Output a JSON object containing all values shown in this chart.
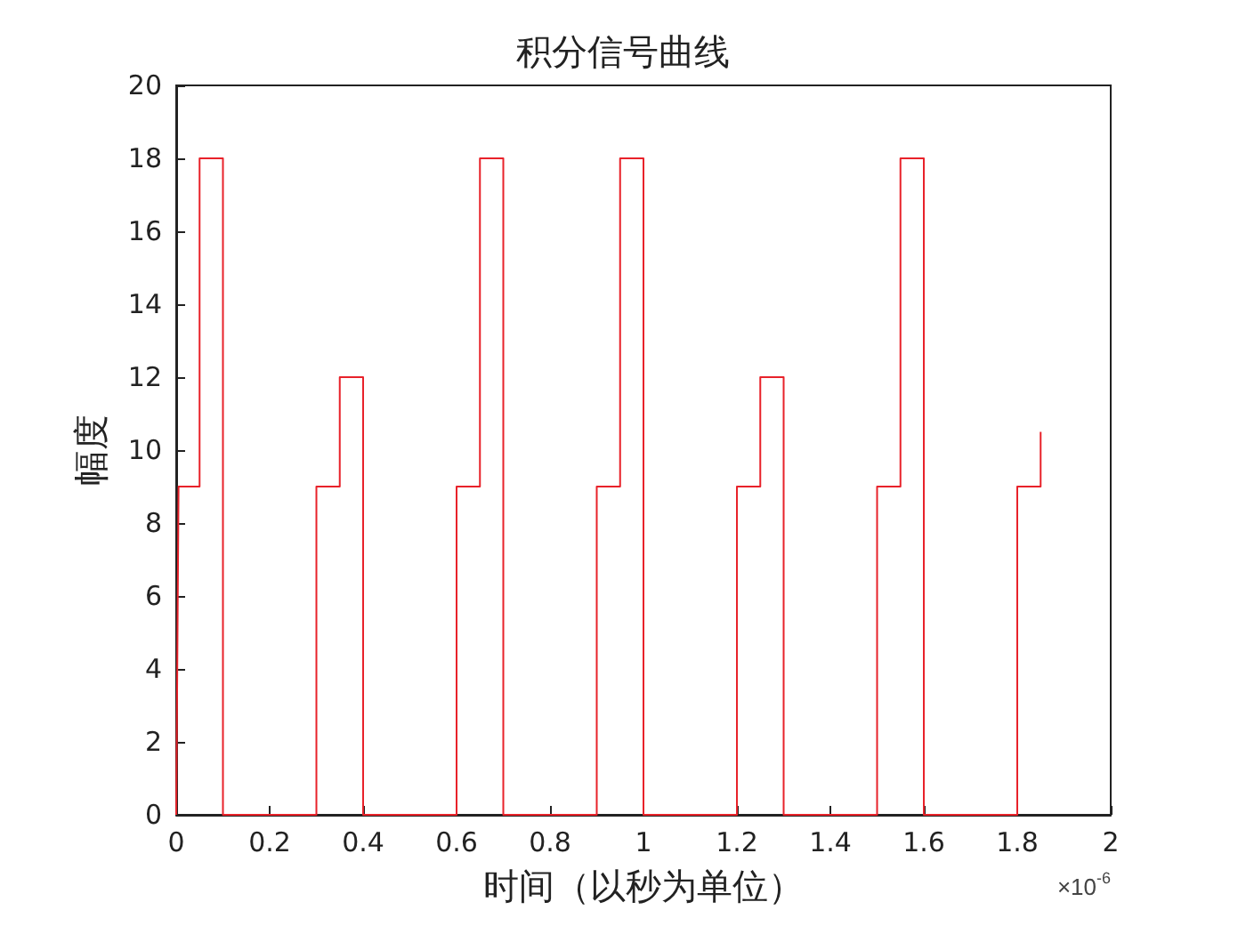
{
  "chart_data": {
    "type": "line",
    "title": "积分信号曲线",
    "xlabel": "时间（以秒为单位）",
    "ylabel": "幅度",
    "x": [
      0,
      0.005,
      0.05,
      0.05,
      0.1,
      0.1,
      0.3,
      0.3,
      0.35,
      0.35,
      0.4,
      0.4,
      0.6,
      0.6,
      0.65,
      0.65,
      0.7,
      0.7,
      0.9,
      0.9,
      0.95,
      0.95,
      1.0,
      1.0,
      1.2,
      1.2,
      1.25,
      1.25,
      1.3,
      1.3,
      1.5,
      1.5,
      1.55,
      1.55,
      1.6,
      1.6,
      1.8,
      1.8,
      1.85,
      1.85
    ],
    "series": [
      {
        "color": "#e8222a",
        "values": [
          0,
          9,
          9,
          18,
          18,
          0,
          0,
          9,
          9,
          12,
          12,
          0,
          0,
          9,
          9,
          18,
          18,
          0,
          0,
          9,
          9,
          18,
          18,
          0,
          0,
          9,
          9,
          12,
          12,
          0,
          0,
          9,
          9,
          18,
          18,
          0,
          0,
          9,
          9,
          10.5
        ]
      }
    ],
    "xlim": [
      0,
      2
    ],
    "xticks": [
      0,
      0.2,
      0.4,
      0.6,
      0.8,
      1,
      1.2,
      1.4,
      1.6,
      1.8,
      2
    ],
    "ylim": [
      0,
      20
    ],
    "yticks": [
      0,
      2,
      4,
      6,
      8,
      10,
      12,
      14,
      16,
      18,
      20
    ],
    "annotations": [
      "×10$^{-6}$"
    ],
    "grid": false,
    "marker": "none",
    "line_style": "solid"
  }
}
